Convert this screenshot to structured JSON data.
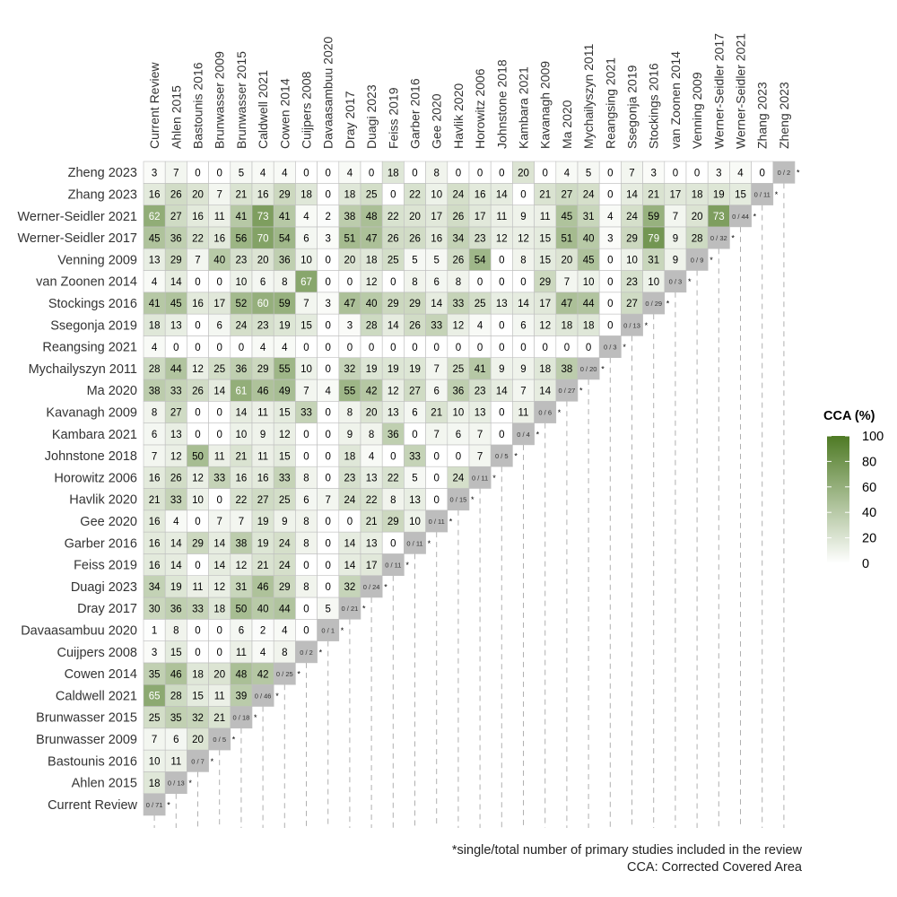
{
  "chart_data": {
    "type": "heatmap",
    "studies": [
      "Current Review",
      "Ahlen 2015",
      "Bastounis 2016",
      "Brunwasser 2009",
      "Brunwasser 2015",
      "Caldwell 2021",
      "Cowen 2014",
      "Cuijpers 2008",
      "Davaasambuu 2020",
      "Dray 2017",
      "Duagi 2023",
      "Feiss 2019",
      "Garber 2016",
      "Gee 2020",
      "Havlik 2020",
      "Horowitz 2006",
      "Johnstone 2018",
      "Kambara 2021",
      "Kavanagh 2009",
      "Ma 2020",
      "Mychailyszyn 2011",
      "Reangsing 2021",
      "Ssegonja 2019",
      "Stockings 2016",
      "van Zoonen 2014",
      "Venning 2009",
      "Werner-Seidler 2017",
      "Werner-Seidler 2021",
      "Zhang 2023",
      "Zheng 2023"
    ],
    "values": [
      [],
      [
        18
      ],
      [
        10,
        11
      ],
      [
        7,
        6,
        20
      ],
      [
        25,
        35,
        32,
        21
      ],
      [
        65,
        28,
        15,
        11,
        39
      ],
      [
        35,
        46,
        18,
        20,
        48,
        42
      ],
      [
        3,
        15,
        0,
        0,
        11,
        4,
        8
      ],
      [
        1,
        8,
        0,
        0,
        6,
        2,
        4,
        0
      ],
      [
        30,
        36,
        33,
        18,
        50,
        40,
        44,
        0,
        5
      ],
      [
        34,
        19,
        11,
        12,
        31,
        46,
        29,
        8,
        0,
        32
      ],
      [
        16,
        14,
        0,
        14,
        12,
        21,
        24,
        0,
        0,
        14,
        17
      ],
      [
        16,
        14,
        29,
        14,
        38,
        19,
        24,
        8,
        0,
        14,
        13,
        0
      ],
      [
        16,
        4,
        0,
        7,
        7,
        19,
        9,
        8,
        0,
        0,
        21,
        29,
        10
      ],
      [
        21,
        33,
        10,
        0,
        22,
        27,
        25,
        6,
        7,
        24,
        22,
        8,
        13,
        0
      ],
      [
        16,
        26,
        12,
        33,
        16,
        16,
        33,
        8,
        0,
        23,
        13,
        22,
        5,
        0,
        24
      ],
      [
        7,
        12,
        50,
        11,
        21,
        11,
        15,
        0,
        0,
        18,
        4,
        0,
        33,
        0,
        0,
        7
      ],
      [
        6,
        13,
        0,
        0,
        10,
        9,
        12,
        0,
        0,
        9,
        8,
        36,
        0,
        7,
        6,
        7,
        0
      ],
      [
        8,
        27,
        0,
        0,
        14,
        11,
        15,
        33,
        0,
        8,
        20,
        13,
        6,
        21,
        10,
        13,
        0,
        11
      ],
      [
        38,
        33,
        26,
        14,
        61,
        46,
        49,
        7,
        4,
        55,
        42,
        12,
        27,
        6,
        36,
        23,
        14,
        7,
        14
      ],
      [
        28,
        44,
        12,
        25,
        36,
        29,
        55,
        10,
        0,
        32,
        19,
        19,
        19,
        7,
        25,
        41,
        9,
        9,
        18,
        38
      ],
      [
        4,
        0,
        0,
        0,
        0,
        4,
        4,
        0,
        0,
        0,
        0,
        0,
        0,
        0,
        0,
        0,
        0,
        0,
        0,
        0,
        0
      ],
      [
        18,
        13,
        0,
        6,
        24,
        23,
        19,
        15,
        0,
        3,
        28,
        14,
        26,
        33,
        12,
        4,
        0,
        6,
        12,
        18,
        18,
        0
      ],
      [
        41,
        45,
        16,
        17,
        52,
        60,
        59,
        7,
        3,
        47,
        40,
        29,
        29,
        14,
        33,
        25,
        13,
        14,
        17,
        47,
        44,
        0,
        27
      ],
      [
        4,
        14,
        0,
        0,
        10,
        6,
        8,
        67,
        0,
        0,
        12,
        0,
        8,
        6,
        8,
        0,
        0,
        0,
        29,
        7,
        10,
        0,
        23,
        10
      ],
      [
        13,
        29,
        7,
        40,
        23,
        20,
        36,
        10,
        0,
        20,
        18,
        25,
        5,
        5,
        26,
        54,
        0,
        8,
        15,
        20,
        45,
        0,
        10,
        31,
        9
      ],
      [
        45,
        36,
        22,
        16,
        56,
        70,
        54,
        6,
        3,
        51,
        47,
        26,
        26,
        16,
        34,
        23,
        12,
        12,
        15,
        51,
        40,
        3,
        29,
        79,
        9,
        28
      ],
      [
        62,
        27,
        16,
        11,
        41,
        73,
        41,
        4,
        2,
        38,
        48,
        22,
        20,
        17,
        26,
        17,
        11,
        9,
        11,
        45,
        31,
        4,
        24,
        59,
        7,
        20,
        73
      ],
      [
        16,
        26,
        20,
        7,
        21,
        16,
        29,
        18,
        0,
        18,
        25,
        0,
        22,
        10,
        24,
        16,
        14,
        0,
        21,
        27,
        24,
        0,
        14,
        21,
        17,
        18,
        19,
        15
      ],
      [
        3,
        7,
        0,
        0,
        5,
        4,
        4,
        0,
        0,
        4,
        0,
        18,
        0,
        8,
        0,
        0,
        0,
        20,
        0,
        4,
        5,
        0,
        7,
        3,
        0,
        0,
        3,
        4,
        0
      ]
    ],
    "diagonal_labels": [
      "0 / 71",
      "0 / 13",
      "0 / 7",
      "0 / 5",
      "0 / 18",
      "0 / 46",
      "0 / 25",
      "0 / 2",
      "0 / 1",
      "0 / 21",
      "0 / 24",
      "0 / 11",
      "0 / 11",
      "0 / 11",
      "0 / 15",
      "0 / 11",
      "0 / 5",
      "0 / 4",
      "0 / 6",
      "0 / 27",
      "0 / 20",
      "0 / 3",
      "0 / 13",
      "0 / 29",
      "0 / 3",
      "0 / 9",
      "0 / 32",
      "0 / 44",
      "0 / 11",
      "0 / 2"
    ],
    "diagonal_marker": "*",
    "legend": {
      "title": "CCA (%)",
      "ticks": [
        0,
        20,
        40,
        60,
        80,
        100
      ],
      "range": [
        0,
        100
      ],
      "color_low": "#ffffff",
      "color_high": "#4e7a24"
    },
    "colors": {
      "diagonal_fill": "#bdbdbd",
      "cell_border": "#bfbfbf",
      "guide_line": "#b0b0b0",
      "text_dark": "#000000",
      "text_light": "#ffffff"
    }
  },
  "footnotes": {
    "line1": "*single/total number of primary studies included in the review",
    "line2": "CCA: Corrected Covered Area"
  }
}
